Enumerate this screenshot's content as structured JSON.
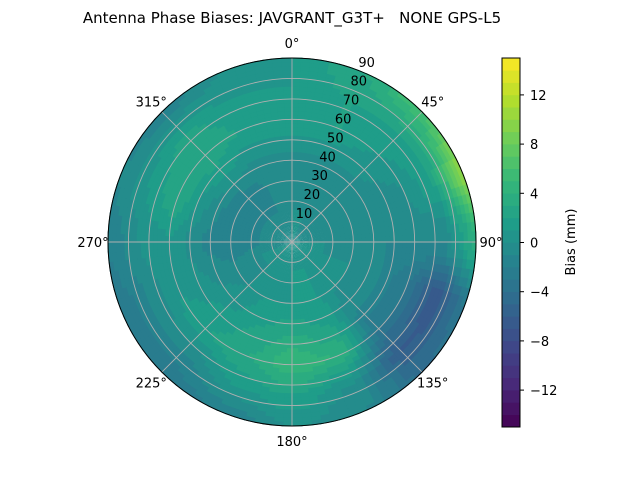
{
  "chart_data": {
    "type": "heatmap",
    "projection": "polar",
    "title": "Antenna Phase Biases: JAVGRANT_G3T+   NONE GPS-L5",
    "azimuth_ticks": [
      "0°",
      "45°",
      "90°",
      "135°",
      "180°",
      "225°",
      "270°",
      "315°"
    ],
    "radial_ticks": [
      "10",
      "20",
      "30",
      "40",
      "50",
      "60",
      "70",
      "80",
      "90"
    ],
    "radial_range": [
      0,
      90
    ],
    "azimuth_direction": "clockwise, 0° at top",
    "grid": true,
    "colormap": "viridis",
    "colorbar": {
      "label": "Bias (mm)",
      "range": [
        -15,
        15
      ],
      "ticks": [
        "−12",
        "−8",
        "−4",
        "0",
        "4",
        "8",
        "12"
      ],
      "tick_values": [
        -12,
        -8,
        -4,
        0,
        4,
        8,
        12
      ],
      "levels": 30
    },
    "azimuths": [
      0,
      22.5,
      45,
      67.5,
      90,
      112.5,
      135,
      157.5,
      180,
      202.5,
      225,
      247.5,
      270,
      292.5,
      315,
      337.5
    ],
    "zeniths": [
      0,
      15,
      30,
      45,
      60,
      75,
      90
    ],
    "values": [
      [
        0,
        0,
        -1,
        0,
        2,
        1,
        1
      ],
      [
        0,
        0,
        -1,
        0,
        2,
        2,
        3
      ],
      [
        0,
        -1,
        -1,
        0,
        1,
        2,
        6
      ],
      [
        0,
        -1,
        -1,
        -1,
        0,
        2,
        10
      ],
      [
        0,
        0,
        -1,
        -1,
        -1,
        -1,
        4
      ],
      [
        0,
        0,
        0,
        -1,
        -3,
        -7,
        -3
      ],
      [
        0,
        0,
        0,
        -1,
        -3,
        -6,
        -4
      ],
      [
        0,
        1,
        1,
        2,
        4,
        0,
        -1
      ],
      [
        0,
        1,
        1,
        3,
        5,
        2,
        0
      ],
      [
        0,
        0,
        1,
        2,
        3,
        1,
        -2
      ],
      [
        0,
        0,
        0,
        1,
        2,
        -1,
        -3
      ],
      [
        0,
        0,
        -1,
        0,
        1,
        -1,
        -3
      ],
      [
        0,
        -1,
        -2,
        -1,
        1,
        0,
        -2
      ],
      [
        0,
        -1,
        -2,
        0,
        3,
        1,
        -1
      ],
      [
        0,
        -1,
        -2,
        1,
        3,
        2,
        -2
      ],
      [
        0,
        -1,
        -1,
        0,
        2,
        1,
        0
      ]
    ]
  }
}
